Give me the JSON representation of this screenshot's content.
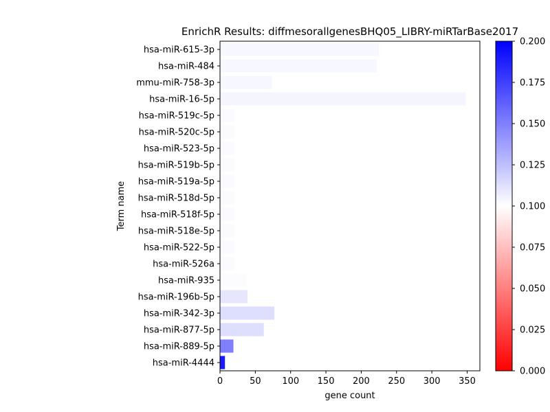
{
  "chart_data": {
    "type": "bar",
    "orientation": "horizontal",
    "title": "EnrichR Results: diffmesorallgenesBHQ05_LIBRY-miRTarBase2017",
    "xlabel": "gene count",
    "ylabel": "Term name",
    "xlim": [
      0,
      368
    ],
    "x_ticks": [
      0,
      50,
      100,
      150,
      200,
      250,
      300,
      350
    ],
    "categories": [
      "hsa-miR-615-3p",
      "hsa-miR-484",
      "mmu-miR-758-3p",
      "hsa-miR-16-5p",
      "hsa-miR-519c-5p",
      "hsa-miR-520c-5p",
      "hsa-miR-523-5p",
      "hsa-miR-519b-5p",
      "hsa-miR-519a-5p",
      "hsa-miR-518d-5p",
      "hsa-miR-518f-5p",
      "hsa-miR-518e-5p",
      "hsa-miR-522-5p",
      "hsa-miR-526a",
      "hsa-miR-935",
      "hsa-miR-196b-5p",
      "hsa-miR-342-3p",
      "hsa-miR-877-5p",
      "hsa-miR-889-5p",
      "hsa-miR-4444"
    ],
    "values": [
      225,
      222,
      74,
      348,
      21,
      21,
      21,
      21,
      21,
      21,
      21,
      21,
      21,
      21,
      38,
      39,
      77,
      62,
      19,
      7
    ],
    "color_values": [
      0.103,
      0.103,
      0.103,
      0.104,
      0.102,
      0.102,
      0.102,
      0.102,
      0.102,
      0.102,
      0.102,
      0.102,
      0.102,
      0.102,
      0.101,
      0.11,
      0.113,
      0.113,
      0.15,
      0.19
    ],
    "colorbar": {
      "range": [
        0.0,
        0.2
      ],
      "ticks": [
        "0.000",
        "0.025",
        "0.050",
        "0.075",
        "0.100",
        "0.125",
        "0.150",
        "0.175",
        "0.200"
      ],
      "colormap": "bwr_r",
      "low_color": "#ff0000",
      "mid_color": "#ffffff",
      "high_color": "#0000ff"
    },
    "grid": false
  }
}
